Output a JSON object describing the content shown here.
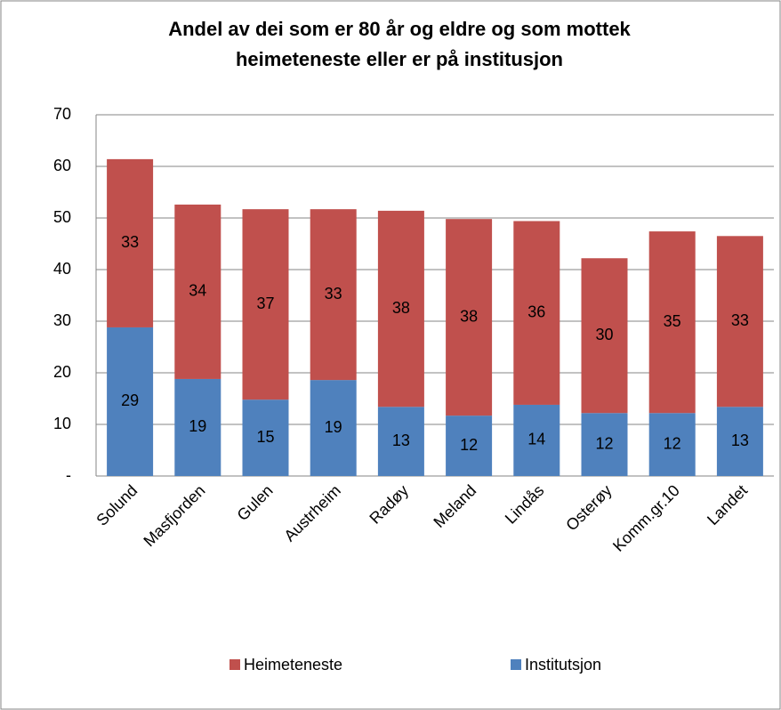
{
  "chart_data": {
    "type": "stacked_bar",
    "title": "Andel av dei som er 80 år og eldre og som mottek heimeteneste eller er på institusjon",
    "categories": [
      "Solund",
      "Masfjorden",
      "Gulen",
      "Austrheim",
      "Radøy",
      "Meland",
      "Lindås",
      "Osterøy",
      "Komm.gr.10",
      "Landet"
    ],
    "series": [
      {
        "name": "Institutsjon",
        "color": "#4f81bd",
        "values": [
          28.8,
          18.8,
          14.8,
          18.6,
          13.4,
          11.7,
          13.8,
          12.2,
          12.2,
          13.4
        ]
      },
      {
        "name": "Heimeteneste",
        "color": "#c0504d",
        "values": [
          32.6,
          33.8,
          36.9,
          33.1,
          38.0,
          38.1,
          35.6,
          30.0,
          35.2,
          33.1
        ]
      }
    ],
    "ylim": [
      0,
      70
    ],
    "yticks": [
      {
        "value": 0,
        "label": "-"
      },
      10,
      20,
      30,
      40,
      50,
      60,
      70
    ],
    "grid": true,
    "legend": "bottom"
  }
}
